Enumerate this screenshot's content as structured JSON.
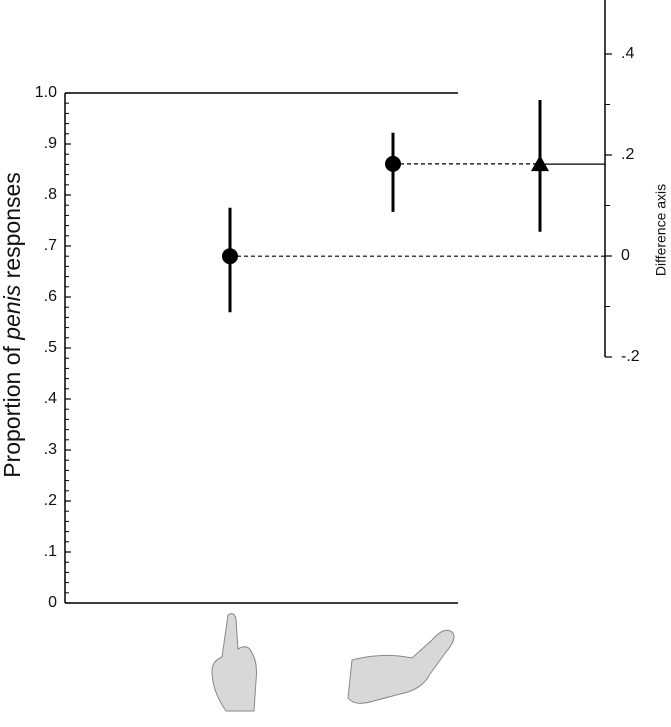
{
  "chart_data": {
    "type": "estimation",
    "ylabel": [
      "Proportion of ",
      "penis",
      " responses"
    ],
    "y2label": "Difference axis",
    "categories": [
      null,
      null
    ],
    "values": [
      0.68,
      0.861
    ],
    "ci_low": [
      0.57,
      0.767
    ],
    "ci_high": [
      0.775,
      0.922
    ],
    "difference": {
      "value": 0.182,
      "ci_low": 0.048,
      "ci_high": 0.309
    },
    "color": "#000000",
    "ylim": [
      0,
      1
    ],
    "yticks": [
      0,
      {
        "value": 0.1,
        "label": ".1"
      },
      {
        "value": 0.2,
        "label": ".2"
      },
      {
        "value": 0.3,
        "label": ".3"
      },
      {
        "value": 0.4,
        "label": ".4"
      },
      {
        "value": 0.5,
        "label": ".5"
      },
      {
        "value": 0.6,
        "label": ".6"
      },
      {
        "value": 0.7,
        "label": ".7"
      },
      {
        "value": 0.8,
        "label": ".8"
      },
      {
        "value": 0.9,
        "label": ".9"
      },
      {
        "value": 1,
        "label": "1.0"
      }
    ],
    "y2lim": [
      -0.2,
      0.507
    ],
    "y2ticks": [
      {
        "value": -0.2,
        "label": "-.2"
      },
      0,
      {
        "value": 0.2,
        "label": ".2"
      },
      {
        "value": 0.4,
        "label": ".4"
      }
    ]
  }
}
